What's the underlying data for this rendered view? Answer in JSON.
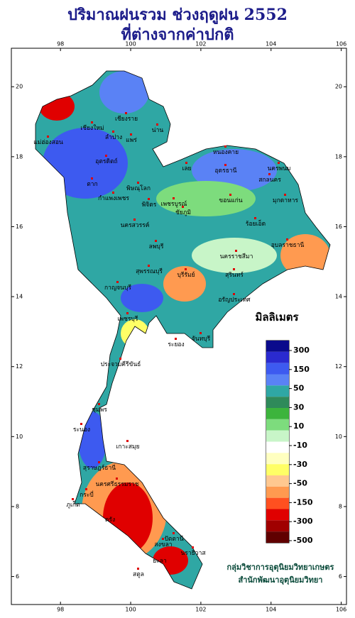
{
  "header": {
    "title_line1": "ปริมาณฝนรวม ช่วงฤดูฝน 2552",
    "title_line2": "ที่ต่างจากค่าปกติ"
  },
  "map": {
    "xlim": [
      96.6,
      106.15
    ],
    "ylim": [
      5.2,
      21.1
    ],
    "lon_ticks": [
      98,
      100,
      102,
      104,
      106
    ],
    "lat_ticks": [
      20,
      18,
      16,
      14,
      12,
      10,
      8,
      6
    ],
    "places": [
      "เชียงราย",
      "เชียงใหม่",
      "ลำปาง",
      "น่าน",
      "แพร่",
      "แม่ฮ่องสอน",
      "อุตรดิตถ์",
      "ตาก",
      "พิษณุโลก",
      "กำแพงเพชร",
      "พิจิตร",
      "นครสวรรค์",
      "เพชรบูรณ์",
      "เลย",
      "หนองคาย",
      "อุดรธานี",
      "นครพนม",
      "สกลนคร",
      "มุกดาหาร",
      "ขอนแก่น",
      "ชัยภูมิ",
      "ร้อยเอ็ด",
      "อุบลราชธานี",
      "ลพบุรี",
      "นครราชสีมา",
      "สุรินทร์",
      "บุรีรัมย์",
      "สุพรรณบุรี",
      "กาญจนบุรี",
      "อรัญประเทศ",
      "ระยอง",
      "จันทบุรี",
      "เพชรบุรี",
      "ประจวบคีรีขันธ์",
      "ชุมพร",
      "ระนอง",
      "สุราษฎร์ธานี",
      "เกาะสมุย",
      "กระบี่",
      "ภูเก็ต",
      "นครศรีธรรมราช",
      "ตรัง",
      "สงขลา",
      "ปัตตานี",
      "นราธิวาส",
      "ยะลา",
      "สตูล"
    ]
  },
  "legend": {
    "title": "มิลลิเมตร",
    "colors": [
      "#0a0a8c",
      "#2a2ad0",
      "#3d5af0",
      "#5a82f5",
      "#2fa7a4",
      "#2f8a5a",
      "#3cb43c",
      "#7ddc7d",
      "#c8f5c8",
      "#ffffff",
      "#ffffc0",
      "#ffff66",
      "#ffc890",
      "#ff9a50",
      "#ff5020",
      "#e00000",
      "#a00000",
      "#600000"
    ],
    "labels": [
      300,
      150,
      50,
      30,
      10,
      -10,
      -30,
      -50,
      -150,
      -300,
      -500
    ]
  },
  "credit": {
    "line1": "กลุ่มวิชาการอุตุนิยมวิทยาเกษตร",
    "line2": "สำนักพัฒนาอุตุนิยมวิทยา"
  }
}
